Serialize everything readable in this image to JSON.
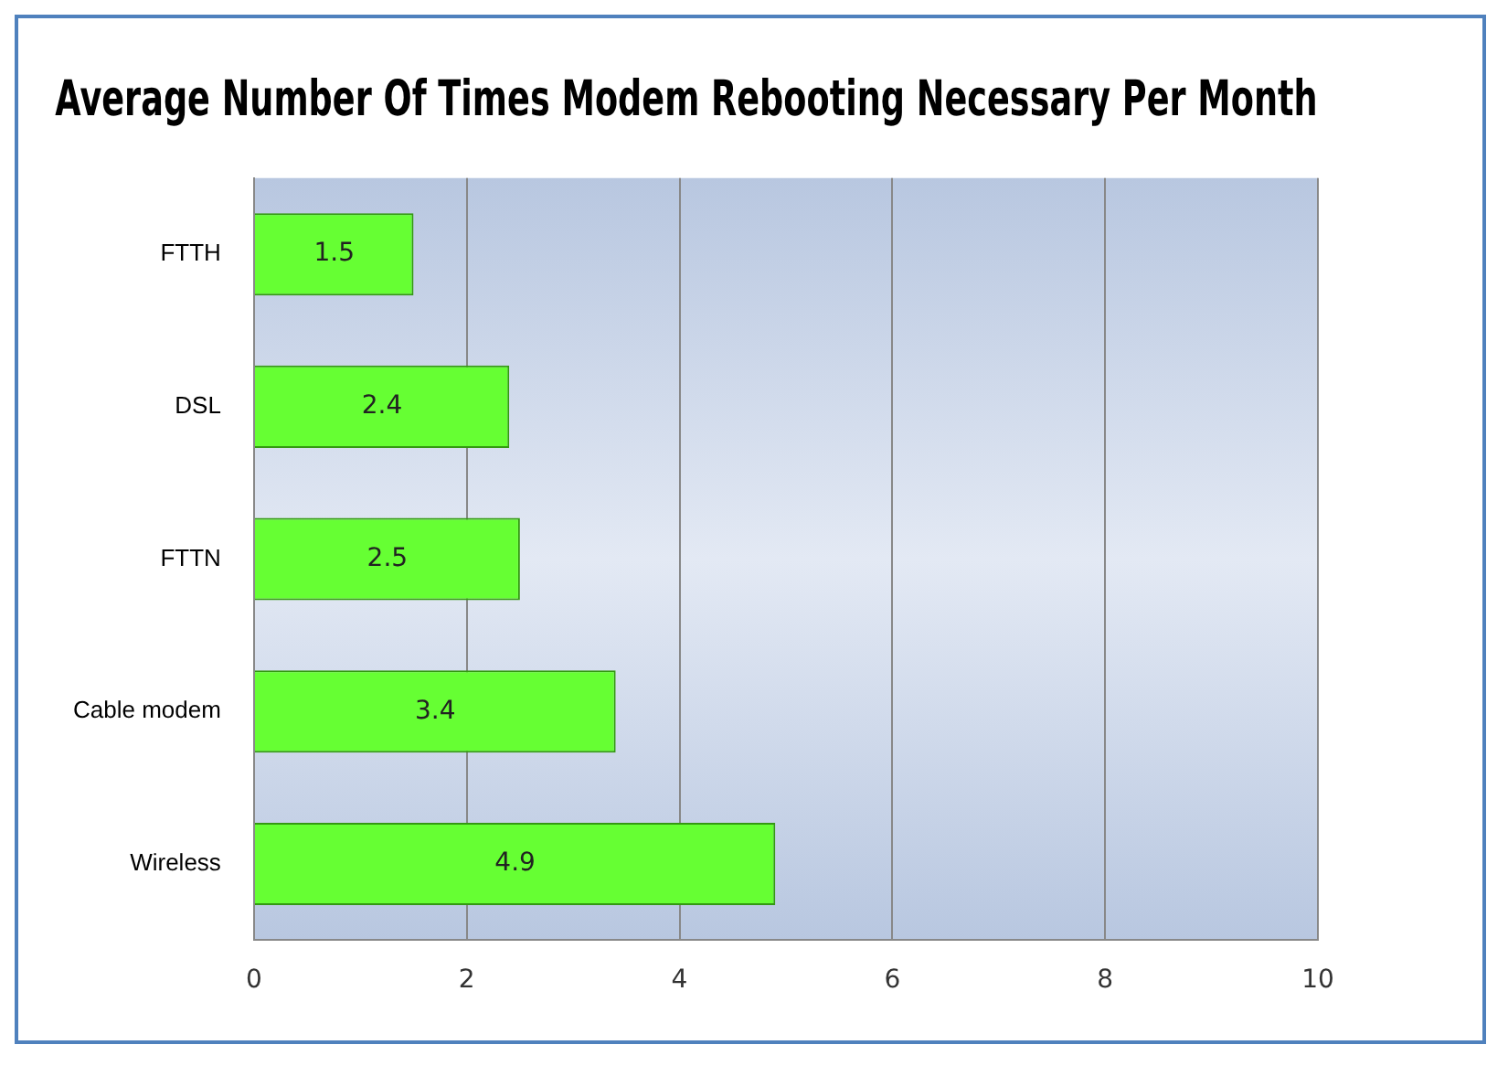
{
  "chart_data": {
    "type": "bar",
    "orientation": "horizontal",
    "title": "Average Number Of Times Modem Rebooting Necessary Per Month",
    "categories": [
      "FTTH",
      "DSL",
      "FTTN",
      "Cable modem",
      "Wireless"
    ],
    "values": [
      1.5,
      2.4,
      2.5,
      3.4,
      4.9
    ],
    "color": "#66ff33",
    "xlim": [
      0,
      10
    ],
    "xticks": [
      0,
      2,
      4,
      6,
      8,
      10
    ],
    "grid": "x",
    "data_labels": true
  }
}
